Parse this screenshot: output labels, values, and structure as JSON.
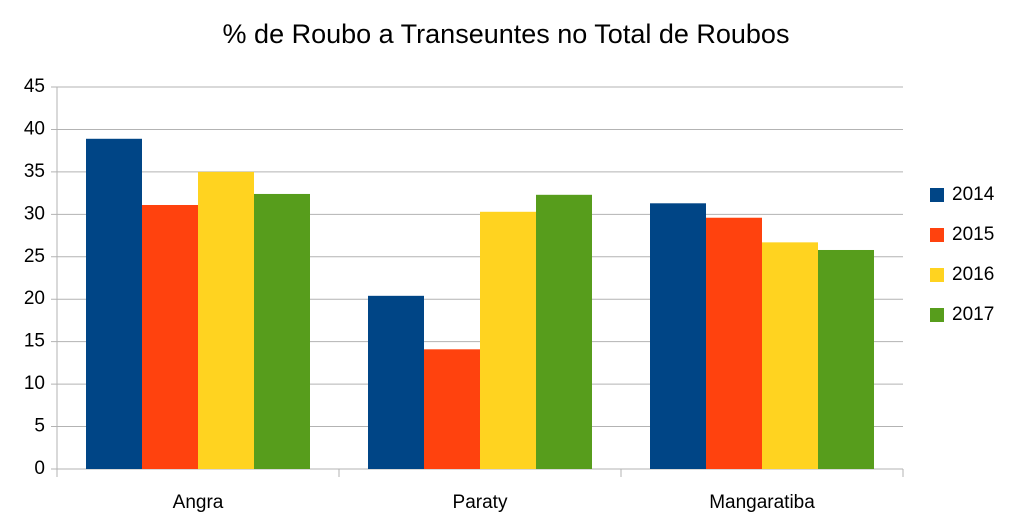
{
  "chart_data": {
    "type": "bar",
    "title": "% de Roubo a Transeuntes no Total de Roubos",
    "categories": [
      "Angra",
      "Paraty",
      "Mangaratiba"
    ],
    "series": [
      {
        "name": "2014",
        "color": "#004586",
        "values": [
          38.9,
          20.4,
          31.3
        ]
      },
      {
        "name": "2015",
        "color": "#ff420e",
        "values": [
          31.1,
          14.1,
          29.6
        ]
      },
      {
        "name": "2016",
        "color": "#ffd320",
        "values": [
          35.0,
          30.3,
          26.7
        ]
      },
      {
        "name": "2017",
        "color": "#579d1c",
        "values": [
          32.4,
          32.3,
          25.8
        ]
      }
    ],
    "ylim": [
      0,
      45
    ],
    "yticks": [
      0,
      5,
      10,
      15,
      20,
      25,
      30,
      35,
      40,
      45
    ],
    "grid": true,
    "legend": "right"
  }
}
